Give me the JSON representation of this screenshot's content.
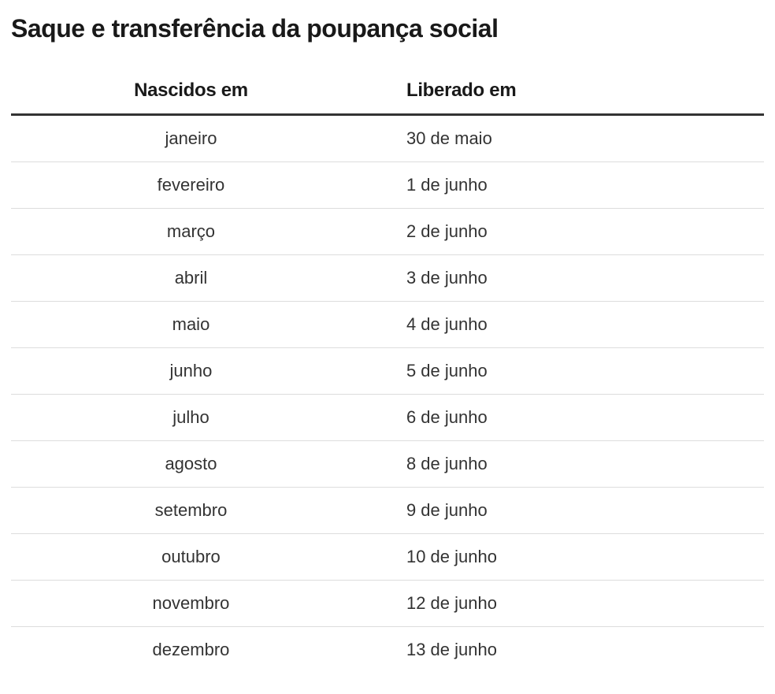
{
  "title": "Saque e transferência da poupança social",
  "table": {
    "header_month": "Nascidos em",
    "header_date": "Liberado em"
  },
  "chart_data": {
    "type": "table",
    "title": "Saque e transferência da poupança social",
    "columns": [
      "Nascidos em",
      "Liberado em"
    ],
    "rows": [
      [
        "janeiro",
        "30 de maio"
      ],
      [
        "fevereiro",
        "1 de junho"
      ],
      [
        "março",
        "2 de junho"
      ],
      [
        "abril",
        "3 de junho"
      ],
      [
        "maio",
        "4 de junho"
      ],
      [
        "junho",
        "5 de junho"
      ],
      [
        "julho",
        "6 de junho"
      ],
      [
        "agosto",
        "8 de junho"
      ],
      [
        "setembro",
        "9 de junho"
      ],
      [
        "outubro",
        "10 de junho"
      ],
      [
        "novembro",
        "12 de junho"
      ],
      [
        "dezembro",
        "13 de junho"
      ]
    ],
    "layout": {
      "column_1_align": "center",
      "column_2_align": "left",
      "grid": "horizontal-dividers-only"
    }
  },
  "colors": {
    "background": "#ffffff",
    "title_text": "#191919",
    "header_text": "#191919",
    "body_text": "#333333",
    "header_rule": "#333333",
    "row_divider": "#dddddd"
  }
}
